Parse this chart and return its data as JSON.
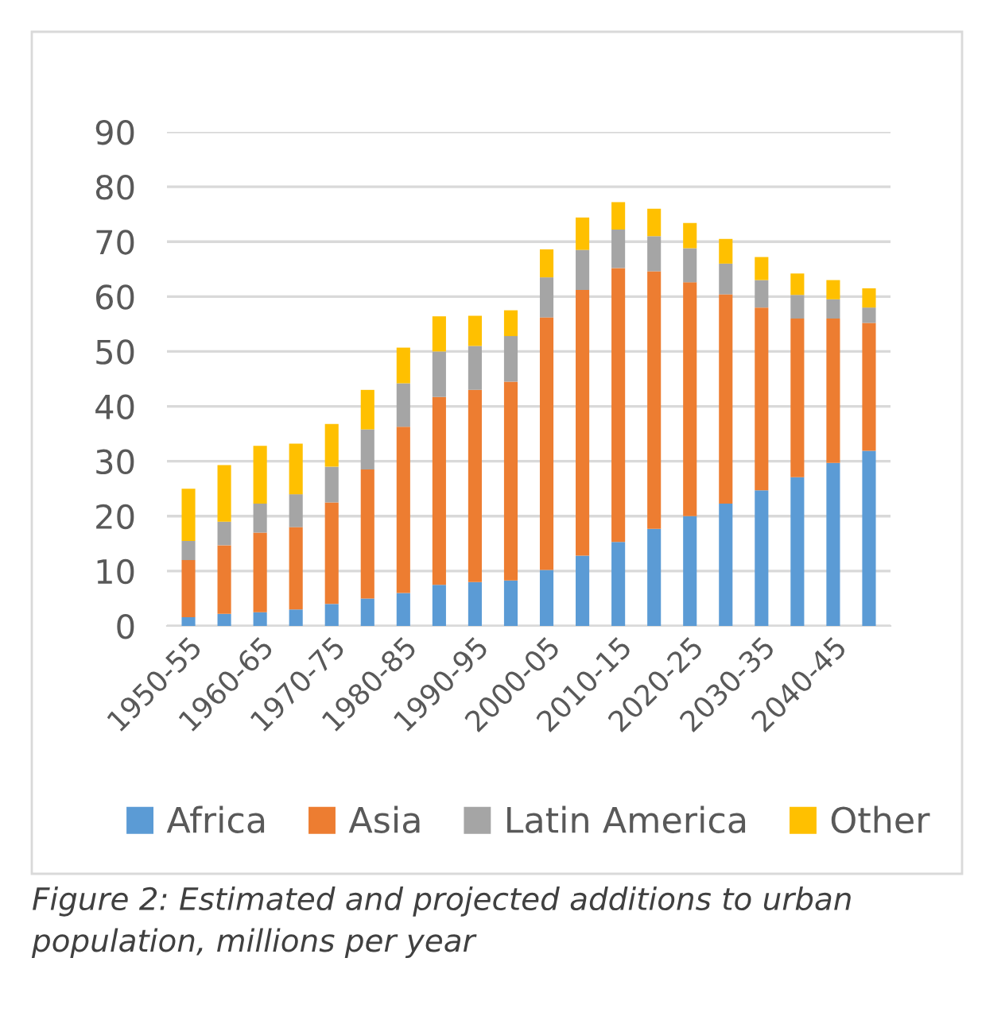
{
  "chart_data": {
    "type": "bar",
    "stacked": true,
    "categories": [
      "1950-55",
      null,
      "1960-65",
      null,
      "1970-75",
      null,
      "1980-85",
      null,
      "1990-95",
      null,
      "2000-05",
      null,
      "2010-15",
      null,
      "2020-25",
      null,
      "2030-35",
      null,
      "2040-45",
      null
    ],
    "series": [
      {
        "name": "Africa",
        "color": "#5b9bd5",
        "values": [
          1.6,
          2.2,
          2.5,
          3,
          4,
          5,
          6,
          7.5,
          8,
          8.3,
          10.2,
          12.8,
          15.3,
          17.7,
          20,
          22.3,
          24.7,
          27.1,
          29.7,
          31.9
        ]
      },
      {
        "name": "Asia",
        "color": "#ed7d31",
        "values": [
          10.4,
          12.5,
          14.5,
          15,
          18.5,
          23.5,
          30.3,
          34.2,
          35,
          36.2,
          46,
          48.4,
          49.9,
          46.9,
          42.6,
          38.1,
          33.3,
          28.9,
          26.3,
          23.3
        ]
      },
      {
        "name": "Latin America",
        "color": "#a5a5a5",
        "values": [
          3.5,
          4.3,
          5.3,
          6,
          6.5,
          7.3,
          7.9,
          8.3,
          8,
          8.3,
          7.3,
          7.3,
          7,
          6.4,
          6.2,
          5.6,
          5,
          4.3,
          3.5,
          2.8
        ]
      },
      {
        "name": "Other",
        "color": "#ffc000",
        "values": [
          9.5,
          10.3,
          10.5,
          9.2,
          7.8,
          7.2,
          6.5,
          6.4,
          5.5,
          4.7,
          5.1,
          5.9,
          5,
          5,
          4.6,
          4.5,
          4.2,
          3.9,
          3.5,
          3.5
        ]
      }
    ],
    "ylim": [
      0,
      90
    ],
    "yticks": [
      0,
      10,
      20,
      30,
      40,
      50,
      60,
      70,
      80,
      90
    ],
    "grid": "y",
    "legend": "bottom",
    "annotations": [
      "Figure 2: Estimated and projected additions to urban population, millions per year"
    ]
  }
}
